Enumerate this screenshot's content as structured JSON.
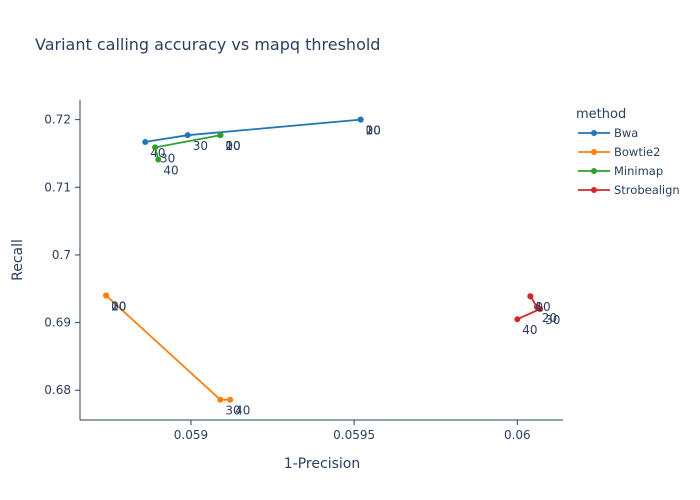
{
  "chart_data": {
    "type": "line",
    "title": "Variant calling accuracy vs mapq threshold",
    "xlabel": "1-Precision",
    "ylabel": "Recall",
    "xlim": [
      0.05866,
      0.06014
    ],
    "ylim": [
      0.6756,
      0.7229
    ],
    "xticks": [
      {
        "v": 0.059,
        "label": "0.059"
      },
      {
        "v": 0.0595,
        "label": "0.0595"
      },
      {
        "v": 0.06,
        "label": "0.06"
      }
    ],
    "yticks": [
      {
        "v": 0.68,
        "label": "0.68"
      },
      {
        "v": 0.69,
        "label": "0.69"
      },
      {
        "v": 0.7,
        "label": "0.7"
      },
      {
        "v": 0.71,
        "label": "0.71"
      },
      {
        "v": 0.72,
        "label": "0.72"
      }
    ],
    "legend_title": "method",
    "legend_position": "top-right",
    "series": [
      {
        "name": "Bwa",
        "color": "#1f77b4",
        "points": [
          {
            "x": 0.05952,
            "y": 0.72,
            "label": "0"
          },
          {
            "x": 0.05952,
            "y": 0.72,
            "label": "10"
          },
          {
            "x": 0.05952,
            "y": 0.72,
            "label": "20"
          },
          {
            "x": 0.05899,
            "y": 0.7177,
            "label": "30"
          },
          {
            "x": 0.05886,
            "y": 0.7167,
            "label": "40"
          }
        ]
      },
      {
        "name": "Bowtie2",
        "color": "#ff7f0e",
        "points": [
          {
            "x": 0.05874,
            "y": 0.694,
            "label": "0"
          },
          {
            "x": 0.05874,
            "y": 0.694,
            "label": "10"
          },
          {
            "x": 0.05874,
            "y": 0.694,
            "label": "20"
          },
          {
            "x": 0.05909,
            "y": 0.6786,
            "label": "30"
          },
          {
            "x": 0.05912,
            "y": 0.6786,
            "label": "40"
          }
        ]
      },
      {
        "name": "Minimap",
        "color": "#2ca02c",
        "points": [
          {
            "x": 0.05909,
            "y": 0.7177,
            "label": "0"
          },
          {
            "x": 0.05909,
            "y": 0.7177,
            "label": "10"
          },
          {
            "x": 0.05909,
            "y": 0.7177,
            "label": "20"
          },
          {
            "x": 0.05889,
            "y": 0.7159,
            "label": "30"
          },
          {
            "x": 0.0589,
            "y": 0.7141,
            "label": "40"
          }
        ]
      },
      {
        "name": "Strobealign",
        "color": "#d62728",
        "points": [
          {
            "x": 0.06004,
            "y": 0.6939,
            "label": "0"
          },
          {
            "x": 0.06004,
            "y": 0.6939,
            "label": "10"
          },
          {
            "x": 0.06006,
            "y": 0.6923,
            "label": "20"
          },
          {
            "x": 0.06007,
            "y": 0.692,
            "label": "30"
          },
          {
            "x": 0.06,
            "y": 0.6905,
            "label": "40"
          }
        ]
      }
    ]
  }
}
